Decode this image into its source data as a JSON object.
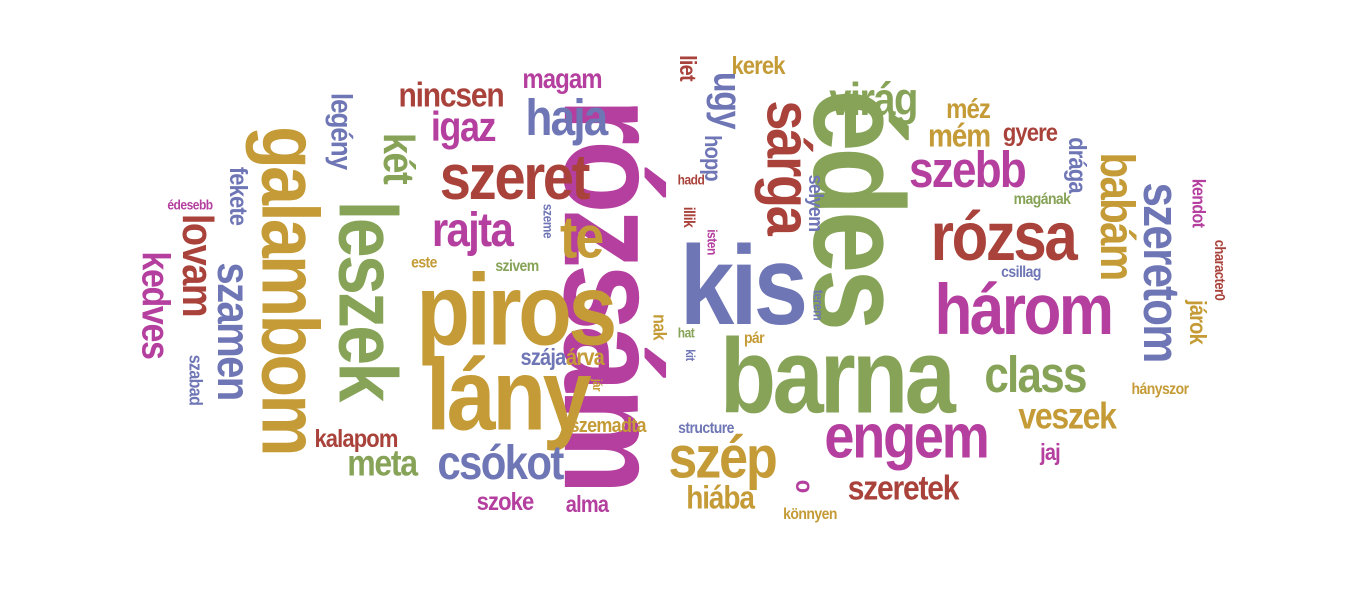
{
  "colors": {
    "magenta": "#B43F9E",
    "gold": "#C49B36",
    "olive": "#86A357",
    "slate": "#6F76B5",
    "brick": "#A9423B",
    "background": "#FFFFFF"
  },
  "words": [
    "rózsám",
    "édes",
    "barna",
    "kis",
    "piros",
    "lány",
    "leszek",
    "galambom",
    "rózsa",
    "három",
    "engem",
    "szeret",
    "te",
    "sárga",
    "szép",
    "class",
    "szeretom",
    "babám",
    "szamen",
    "lovam",
    "szebb",
    "haja",
    "csókot",
    "virág",
    "rajta",
    "igaz",
    "veszek",
    "nincsen",
    "meta",
    "legény",
    "két",
    "kedves",
    "ugy",
    "szeretek",
    "hiába",
    "mém",
    "méz",
    "magam",
    "gyere",
    "drága",
    "fekete",
    "kerek",
    "kalapom",
    "szoke",
    "alma",
    "szája",
    "árva",
    "liet",
    "hopp",
    "jaj",
    "járok",
    "selyem",
    "structure",
    "kendot",
    "hányszor",
    "character0",
    "magának",
    "csillag",
    "édesebb",
    "szabad",
    "szivem",
    "szeme",
    "este",
    "hadd",
    "isten",
    "illik",
    "hat",
    "kit",
    "pár",
    "terem",
    "könnyen",
    "eszemadta",
    "jár",
    "nak",
    "o",
    "c"
  ]
}
